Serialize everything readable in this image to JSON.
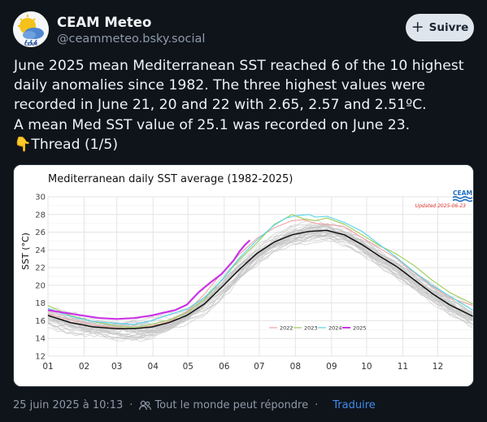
{
  "author": {
    "name": "CEAM Meteo",
    "handle": "@ceammeteo.bsky.social",
    "avatar_text": "CEAM"
  },
  "follow_button": {
    "label": "Suivre",
    "icon": "plus-icon"
  },
  "post": {
    "lines": [
      "June 2025 mean Mediterranean SST reached 6 of the 10 highest",
      "daily anomalies since 1982. The three highest values were",
      "recorded in June 21, 20 and 22 with 2.65, 2.57 and 2.51ºC.",
      "A mean Med SST value of 25.1 was recorded on June 23.",
      "👇Thread (1/5)"
    ]
  },
  "footer": {
    "timestamp": "25 juin 2025 à 10:13",
    "reply_setting": "Tout le monde peut répondre",
    "separator": "·",
    "translate_label": "Traduire"
  },
  "colors": {
    "background": "#0f141a",
    "accent_link": "#3f8cf0",
    "s2022": "#f2a3a3",
    "s2023": "#9ccc55",
    "s2024": "#54d4ea",
    "s2025": "#cc33e6",
    "mean": "#111111",
    "historic": "#c4c4c4",
    "logo_blue": "#1f6fc0",
    "updated_red": "#e0322a"
  },
  "chart_data": {
    "type": "line",
    "title": "Mediterranean daily SST average (1982-2025)",
    "xlabel": "",
    "ylabel": "SST (°C)",
    "ylim": [
      12,
      30
    ],
    "yticks": [
      "12",
      "14",
      "16",
      "18",
      "20",
      "22",
      "24",
      "26",
      "28",
      "30"
    ],
    "x_tick_labels": [
      "01",
      "02",
      "03",
      "04",
      "05",
      "06",
      "07",
      "08",
      "09",
      "10",
      "11",
      "12"
    ],
    "grid": true,
    "legend_position": "bottom-right",
    "logo_text": "CEAM",
    "updated_text": "Updated 2025-06-23",
    "x_unit": "day-of-year",
    "mean_series": {
      "x": [
        1,
        20,
        40,
        60,
        75,
        90,
        105,
        120,
        135,
        150,
        165,
        180,
        195,
        210,
        225,
        240,
        255,
        270,
        285,
        300,
        315,
        330,
        345,
        365
      ],
      "y": [
        16.6,
        15.8,
        15.3,
        15.1,
        15.1,
        15.3,
        15.8,
        16.6,
        17.9,
        19.8,
        21.8,
        23.6,
        24.9,
        25.7,
        26.1,
        26.2,
        25.7,
        24.6,
        23.3,
        22.1,
        20.6,
        19.1,
        17.8,
        16.5
      ]
    },
    "series": [
      {
        "name": "2022",
        "x": [
          1,
          20,
          40,
          60,
          75,
          90,
          105,
          120,
          135,
          150,
          165,
          180,
          195,
          210,
          220,
          230,
          240,
          255,
          270,
          285,
          300,
          315,
          330,
          345,
          365
        ],
        "y": [
          16.8,
          16.1,
          15.5,
          15.2,
          15.1,
          15.4,
          15.9,
          17.0,
          19.0,
          21.4,
          23.5,
          25.3,
          26.5,
          27.3,
          27.4,
          27.0,
          26.9,
          26.6,
          25.4,
          24.2,
          23.0,
          21.4,
          19.9,
          18.6,
          17.7
        ]
      },
      {
        "name": "2023",
        "x": [
          1,
          20,
          40,
          60,
          75,
          90,
          105,
          120,
          135,
          150,
          165,
          180,
          195,
          205,
          210,
          220,
          230,
          240,
          255,
          270,
          285,
          300,
          315,
          330,
          345,
          365
        ],
        "y": [
          17.7,
          16.6,
          15.9,
          15.4,
          15.2,
          15.6,
          16.1,
          16.9,
          18.4,
          20.6,
          22.9,
          24.8,
          26.9,
          27.6,
          28.0,
          27.5,
          27.3,
          27.6,
          26.9,
          25.7,
          24.5,
          23.5,
          22.2,
          20.6,
          19.2,
          17.9
        ]
      },
      {
        "name": "2024",
        "x": [
          1,
          20,
          40,
          60,
          75,
          90,
          105,
          120,
          135,
          150,
          165,
          180,
          195,
          205,
          215,
          225,
          230,
          240,
          255,
          270,
          285,
          300,
          315,
          330,
          345,
          365
        ],
        "y": [
          17.4,
          16.5,
          15.9,
          15.7,
          15.6,
          16.0,
          16.7,
          17.3,
          18.6,
          20.6,
          23.1,
          25.1,
          26.8,
          27.6,
          27.9,
          28.0,
          27.7,
          27.8,
          27.1,
          26.1,
          24.6,
          23.1,
          21.5,
          20.0,
          18.8,
          17.2
        ]
      },
      {
        "name": "2025",
        "x": [
          1,
          15,
          30,
          45,
          60,
          75,
          90,
          100,
          110,
          120,
          130,
          140,
          150,
          160,
          165,
          170,
          174
        ],
        "y": [
          17.2,
          16.9,
          16.6,
          16.3,
          16.2,
          16.3,
          16.6,
          16.9,
          17.2,
          17.8,
          19.2,
          20.3,
          21.3,
          22.8,
          23.8,
          24.6,
          25.1
        ]
      }
    ]
  }
}
